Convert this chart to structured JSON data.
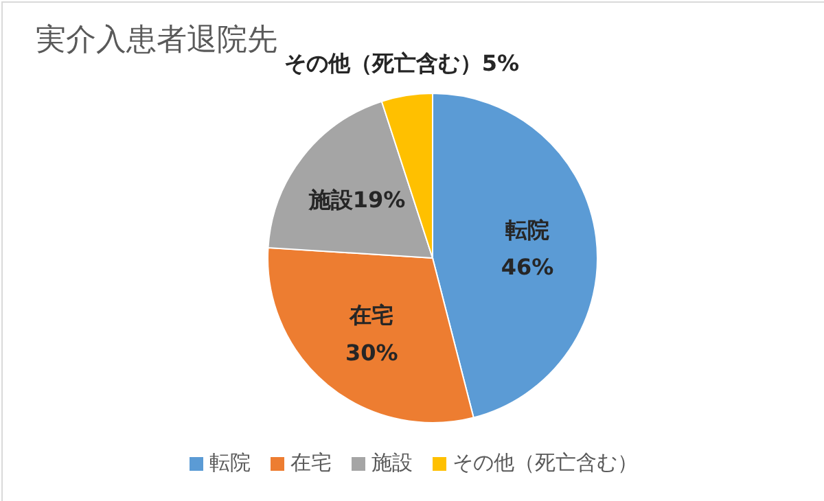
{
  "chart_data": {
    "type": "pie",
    "title": "実介入患者退院先",
    "categories": [
      "転院",
      "在宅",
      "施設",
      "その他（死亡含む）"
    ],
    "values": [
      46,
      30,
      19,
      5
    ],
    "value_labels": [
      "46%",
      "30%",
      "19%",
      "5%"
    ],
    "colors": [
      "#5b9bd5",
      "#ed7d31",
      "#a5a5a5",
      "#ffc000"
    ],
    "legend": "bottom"
  }
}
